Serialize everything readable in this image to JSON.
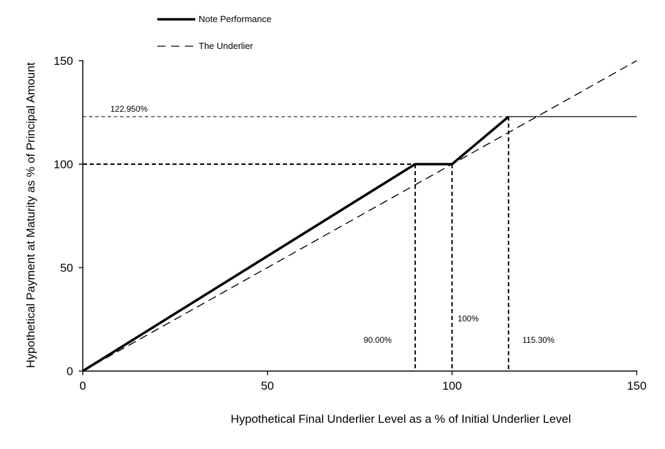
{
  "chart_data": {
    "type": "line",
    "xlabel": "Hypothetical Final Underlier Level as a % of Initial Underlier Level",
    "ylabel": "Hypothetical Payment at Maturity as % of Principal Amount",
    "xlim": [
      0,
      150
    ],
    "ylim": [
      0,
      150
    ],
    "xticks": [
      0,
      50,
      100,
      150
    ],
    "yticks": [
      0,
      50,
      100,
      150
    ],
    "grid": false,
    "legend_position": "top-left",
    "series": [
      {
        "name": "Note Performance",
        "style": "solid-thick",
        "x": [
          0,
          90,
          100,
          115.3,
          150
        ],
        "y": [
          0,
          100,
          100,
          122.95,
          122.95
        ]
      },
      {
        "name": "The Underlier",
        "style": "dashed",
        "x": [
          0,
          150
        ],
        "y": [
          0,
          150
        ]
      }
    ],
    "annotations": [
      {
        "text": "122.950%",
        "kind": "horizontal-reference",
        "y": 122.95
      },
      {
        "text": "90.00%",
        "kind": "vertical-reference",
        "x": 90
      },
      {
        "text": "100%",
        "kind": "vertical-reference",
        "x": 100
      },
      {
        "text": "115.30%",
        "kind": "vertical-reference",
        "x": 115.3
      }
    ],
    "reference_lines": {
      "horizontal": [
        100,
        122.95
      ],
      "vertical": [
        90,
        100,
        115.3
      ]
    }
  }
}
